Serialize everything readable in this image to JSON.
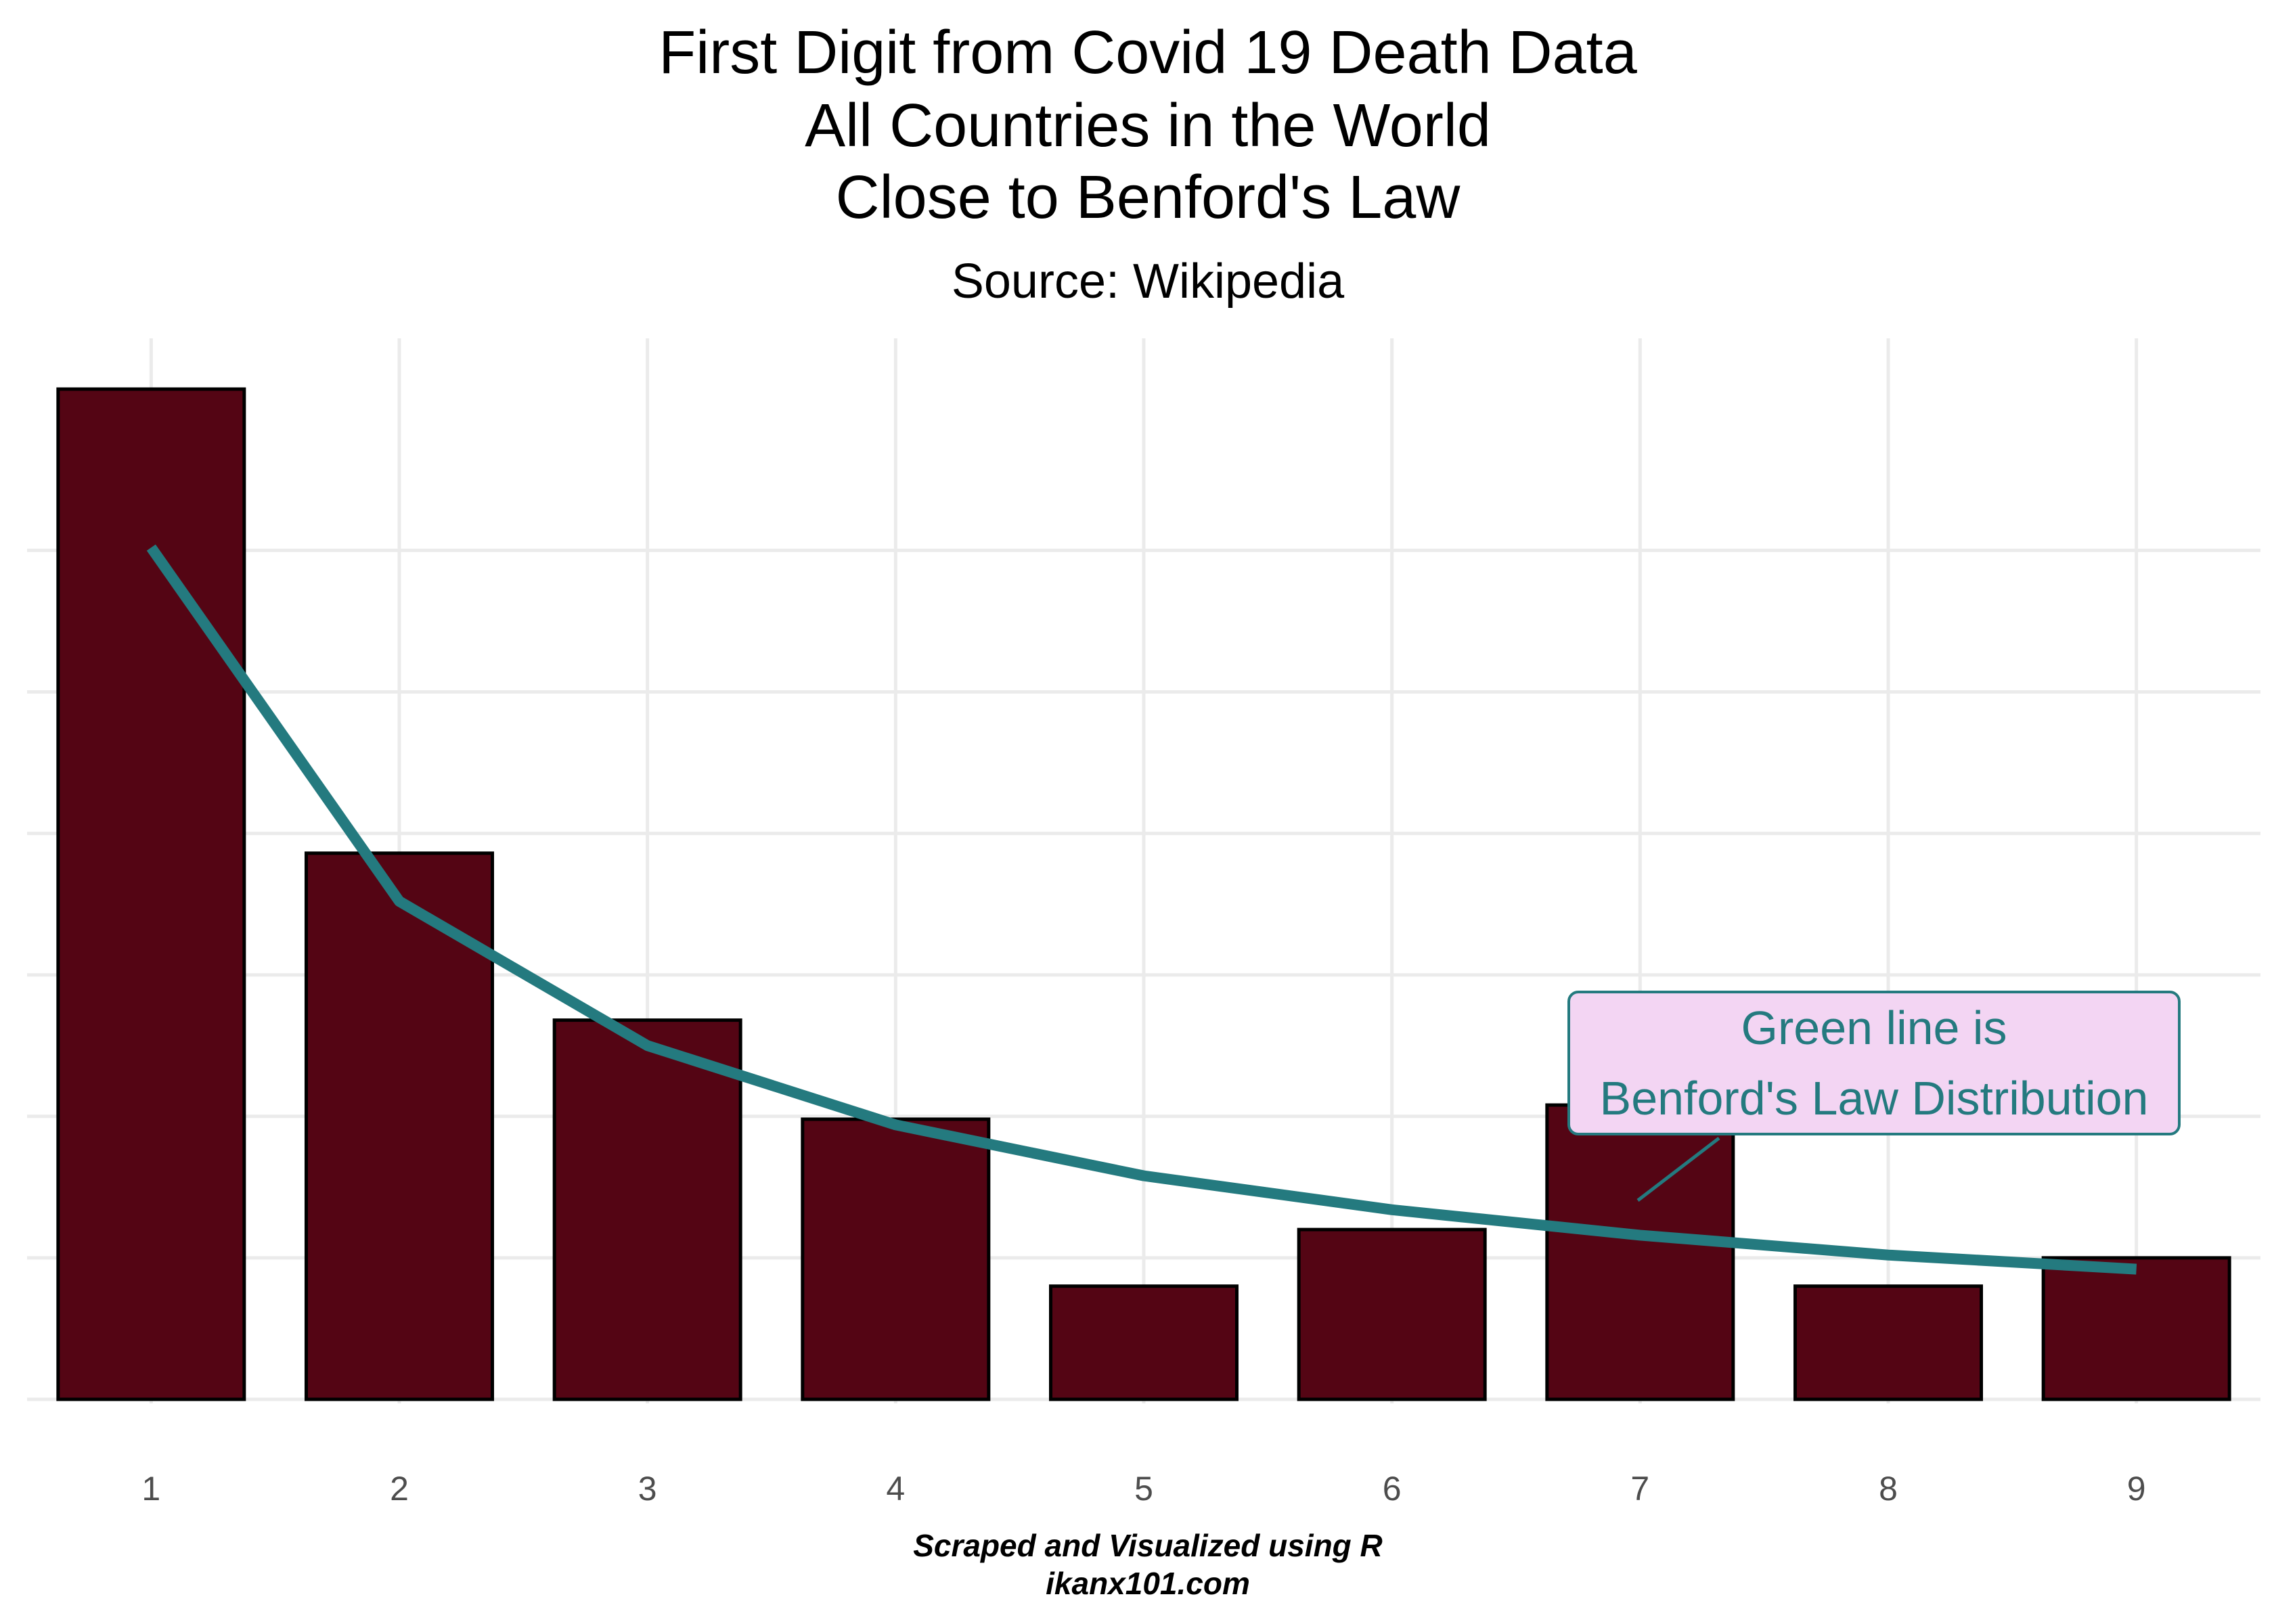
{
  "chart_data": {
    "type": "bar",
    "title": [
      "First Digit from Covid 19 Death Data",
      "All Countries in the World",
      "Close to Benford's Law"
    ],
    "subtitle": "Source: Wikipedia",
    "caption": [
      "Scraped and Visualized using R",
      "ikanx101.com"
    ],
    "categories": [
      "1",
      "2",
      "3",
      "4",
      "5",
      "6",
      "7",
      "8",
      "9"
    ],
    "series": [
      {
        "values": [
          35.7,
          19.3,
          13.4,
          9.9,
          4.0,
          6.0,
          10.4,
          4.0,
          5.0
        ],
        "color": "#540514",
        "stroke": "#000000"
      },
      {
        "values": [
          30.1,
          17.6,
          12.5,
          9.7,
          7.9,
          6.7,
          5.8,
          5.1,
          4.6
        ],
        "color": "#247a7f"
      }
    ],
    "ylim": [
      0,
      36
    ],
    "y_ticks_labeled": false,
    "grid": true,
    "annotation": {
      "text": [
        "Green line is",
        "Benford's Law Distribution"
      ],
      "fill": "#f3d5f3",
      "border": "#247a7f",
      "color": "#247a7f",
      "points_to": "7"
    }
  }
}
